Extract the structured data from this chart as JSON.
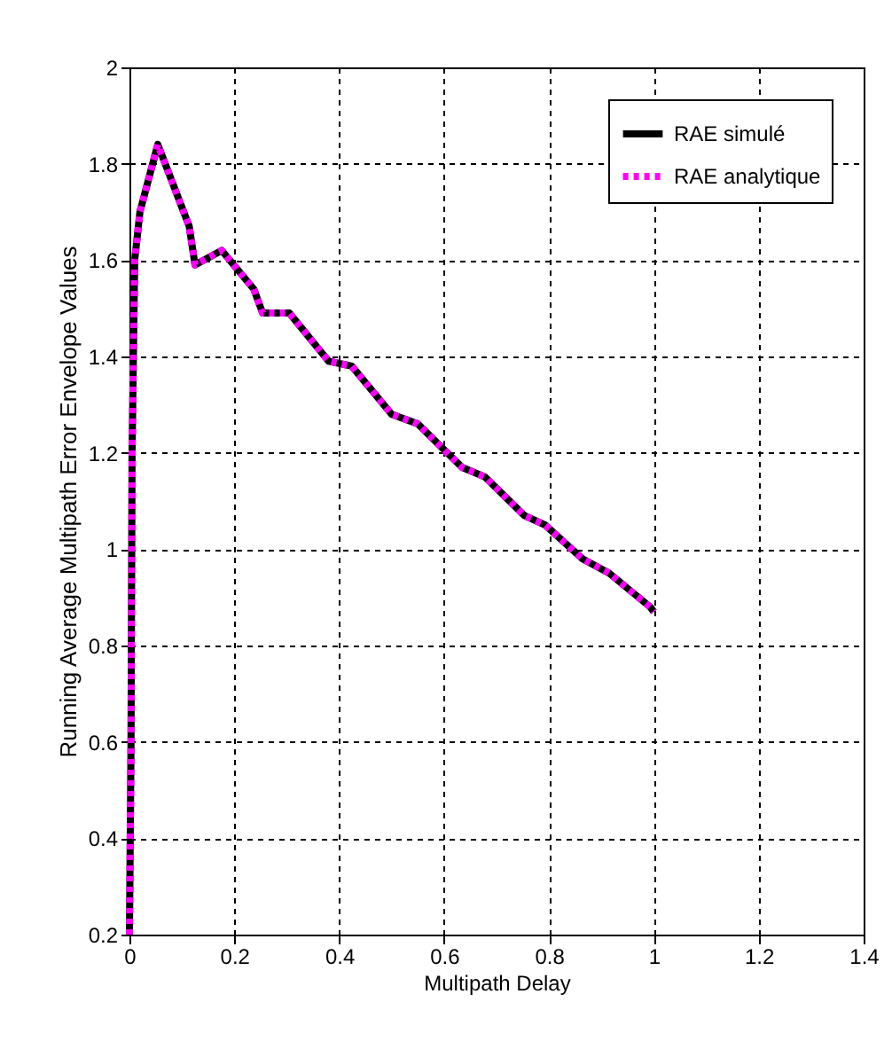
{
  "chart_data": {
    "type": "line",
    "xlabel": "Multipath Delay",
    "ylabel": "Running Average Multipath Error Envelope Values",
    "x": [
      0,
      0.003,
      0.005,
      0.01,
      0.02,
      0.054,
      0.114,
      0.125,
      0.176,
      0.237,
      0.254,
      0.305,
      0.38,
      0.424,
      0.5,
      0.55,
      0.634,
      0.678,
      0.753,
      0.793,
      0.864,
      0.915,
      0.993,
      1
    ],
    "series": [
      {
        "name": "RAE simulé",
        "color": "#000000",
        "line_style": "solid",
        "values": [
          0.2,
          0.6,
          1.2,
          1.6,
          1.7,
          1.84,
          1.67,
          1.59,
          1.62,
          1.54,
          1.49,
          1.49,
          1.39,
          1.38,
          1.28,
          1.26,
          1.17,
          1.15,
          1.07,
          1.05,
          0.98,
          0.95,
          0.88,
          0.87
        ]
      },
      {
        "name": "RAE analytique",
        "color": "#ff00ff",
        "line_style": "dotted",
        "values": [
          0.2,
          0.6,
          1.2,
          1.6,
          1.7,
          1.84,
          1.67,
          1.59,
          1.62,
          1.54,
          1.49,
          1.49,
          1.39,
          1.38,
          1.28,
          1.26,
          1.17,
          1.15,
          1.07,
          1.05,
          0.98,
          0.95,
          0.88,
          0.87
        ]
      }
    ],
    "xlim": [
      0,
      1.4
    ],
    "xticks": [
      0,
      0.2,
      0.4,
      0.6,
      0.8,
      1,
      1.2,
      1.4
    ],
    "ylim": [
      0.2,
      2
    ],
    "yticks": [
      0.2,
      0.4,
      0.6,
      0.8,
      1,
      1.2,
      1.4,
      1.6,
      1.8,
      2
    ],
    "grid": true,
    "legend": "top right",
    "marker": "none"
  }
}
